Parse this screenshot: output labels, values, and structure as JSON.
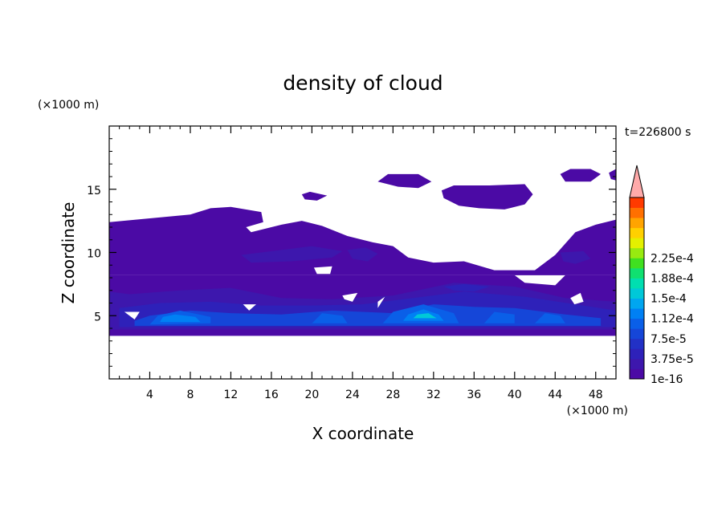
{
  "chart_data": {
    "type": "heatmap",
    "title": "density of cloud",
    "time_label": "t=226800 s",
    "xlabel": "X coordinate",
    "ylabel": "Z coordinate",
    "x_unit": "(×1000 m)",
    "y_unit": "(×1000 m)",
    "xlim": [
      0,
      50
    ],
    "ylim": [
      0,
      20
    ],
    "x_ticks": [
      "4",
      "8",
      "12",
      "16",
      "20",
      "24",
      "28",
      "32",
      "36",
      "40",
      "44",
      "48"
    ],
    "x_tick_values": [
      4,
      8,
      12,
      16,
      20,
      24,
      28,
      32,
      36,
      40,
      44,
      48
    ],
    "y_ticks": [
      "5",
      "10",
      "15"
    ],
    "y_tick_values": [
      5,
      10,
      15
    ],
    "colorbar": {
      "labels": [
        "1e-16",
        "3.75e-5",
        "7.5e-5",
        "1.12e-4",
        "1.5e-4",
        "1.88e-4",
        "2.25e-4"
      ],
      "label_values": [
        1e-16,
        3.75e-05,
        7.5e-05,
        0.000112,
        0.00015,
        0.000188,
        0.000225
      ],
      "levels": 18,
      "colors": [
        "#4b0aa5",
        "#3d17ad",
        "#2e21b9",
        "#2231c6",
        "#1546d8",
        "#0a5fe8",
        "#0080f4",
        "#00a6f0",
        "#00c8d8",
        "#00deb0",
        "#10e070",
        "#40e020",
        "#98ea10",
        "#e4f000",
        "#ffd000",
        "#ffa400",
        "#ff7000",
        "#ff3a00"
      ],
      "over_color": "#ffaaaa",
      "extend": "max"
    },
    "cloud_regions": [
      {
        "level": 0,
        "poly": [
          [
            0,
            3.4
          ],
          [
            50,
            3.4
          ],
          [
            50,
            8.2
          ],
          [
            45,
            8.2
          ],
          [
            44,
            7.4
          ],
          [
            41,
            7.6
          ],
          [
            40,
            8.2
          ],
          [
            0,
            8.2
          ]
        ]
      },
      {
        "level": 0,
        "poly": [
          [
            0,
            12.4
          ],
          [
            8,
            13
          ],
          [
            10,
            13.5
          ],
          [
            12,
            13.6
          ],
          [
            15,
            13.2
          ],
          [
            15.2,
            12.4
          ],
          [
            13.5,
            12
          ],
          [
            14,
            11.6
          ],
          [
            17,
            12.2
          ],
          [
            19,
            12.5
          ],
          [
            21,
            12.1
          ],
          [
            23.5,
            11.3
          ],
          [
            26,
            10.8
          ],
          [
            28,
            10.5
          ],
          [
            29.5,
            9.6
          ],
          [
            32,
            9.2
          ],
          [
            35,
            9.3
          ],
          [
            38,
            8.6
          ],
          [
            42,
            8.6
          ],
          [
            44,
            9.8
          ],
          [
            46,
            11.6
          ],
          [
            48,
            12.2
          ],
          [
            50,
            12.6
          ],
          [
            50,
            8.2
          ],
          [
            0,
            8.2
          ]
        ]
      },
      {
        "level": 0,
        "poly": [
          [
            26.5,
            15.6
          ],
          [
            27.5,
            16.2
          ],
          [
            30.5,
            16.2
          ],
          [
            31.8,
            15.6
          ],
          [
            30.5,
            15.1
          ],
          [
            28.5,
            15.2
          ]
        ]
      },
      {
        "level": 0,
        "poly": [
          [
            32.8,
            14.9
          ],
          [
            34,
            15.3
          ],
          [
            37.5,
            15.3
          ],
          [
            41,
            15.4
          ],
          [
            41.8,
            14.6
          ],
          [
            41,
            13.8
          ],
          [
            39,
            13.4
          ],
          [
            36.5,
            13.5
          ],
          [
            34.5,
            13.7
          ],
          [
            33,
            14.3
          ]
        ]
      },
      {
        "level": 0,
        "poly": [
          [
            44.5,
            16.2
          ],
          [
            45.5,
            16.6
          ],
          [
            47.5,
            16.6
          ],
          [
            48.5,
            16.2
          ],
          [
            47.5,
            15.6
          ],
          [
            45,
            15.6
          ]
        ]
      },
      {
        "level": 0,
        "poly": [
          [
            49.3,
            16.3
          ],
          [
            50,
            16.6
          ],
          [
            50,
            15.7
          ],
          [
            49.5,
            15.8
          ]
        ]
      },
      {
        "level": 0,
        "poly": [
          [
            19,
            14.6
          ],
          [
            19.8,
            14.8
          ],
          [
            21.5,
            14.5
          ],
          [
            20.5,
            14.1
          ],
          [
            19.3,
            14.2
          ]
        ]
      },
      {
        "level": 1,
        "poly": [
          [
            0,
            3.9
          ],
          [
            50,
            3.9
          ],
          [
            50,
            6.1
          ],
          [
            45,
            6.4
          ],
          [
            40,
            7.3
          ],
          [
            34,
            7.6
          ],
          [
            28,
            6.6
          ],
          [
            22,
            6.3
          ],
          [
            17,
            6.4
          ],
          [
            12,
            7.2
          ],
          [
            7,
            7
          ],
          [
            2,
            6.7
          ],
          [
            0,
            6.9
          ]
        ]
      },
      {
        "level": 1,
        "poly": [
          [
            13,
            9.8
          ],
          [
            17,
            10.2
          ],
          [
            20,
            10.5
          ],
          [
            23,
            10.1
          ],
          [
            22,
            9.6
          ],
          [
            18,
            9.3
          ],
          [
            14,
            9.2
          ]
        ]
      },
      {
        "level": 1,
        "poly": [
          [
            23.5,
            10.2
          ],
          [
            25.3,
            10.4
          ],
          [
            26.5,
            9.9
          ],
          [
            25.5,
            9.3
          ],
          [
            24,
            9.5
          ]
        ]
      },
      {
        "level": 1,
        "poly": [
          [
            44.5,
            10
          ],
          [
            46.8,
            10.1
          ],
          [
            47.5,
            9.5
          ],
          [
            46,
            9.1
          ],
          [
            44.8,
            9.3
          ]
        ]
      },
      {
        "level": 2,
        "poly": [
          [
            1,
            4.1
          ],
          [
            50,
            4.1
          ],
          [
            50,
            5.4
          ],
          [
            46,
            5.9
          ],
          [
            41,
            6.5
          ],
          [
            35,
            6.9
          ],
          [
            30,
            6.4
          ],
          [
            25,
            5.9
          ],
          [
            20,
            5.8
          ],
          [
            15,
            5.8
          ],
          [
            10,
            6.1
          ],
          [
            5,
            6
          ],
          [
            1,
            5.6
          ]
        ]
      },
      {
        "level": 2,
        "poly": [
          [
            33,
            7.3
          ],
          [
            35,
            7.5
          ],
          [
            37.5,
            7.3
          ],
          [
            36,
            6.9
          ],
          [
            34,
            7
          ]
        ]
      },
      {
        "level": 4,
        "poly": [
          [
            2.5,
            4.2
          ],
          [
            48.5,
            4.2
          ],
          [
            48.5,
            4.8
          ],
          [
            45,
            5.1
          ],
          [
            40,
            5.6
          ],
          [
            36,
            5.7
          ],
          [
            32,
            5.9
          ],
          [
            28,
            5.2
          ],
          [
            22,
            5.4
          ],
          [
            17,
            5.1
          ],
          [
            12,
            5.2
          ],
          [
            8,
            5.4
          ],
          [
            4,
            5
          ],
          [
            2.5,
            4.6
          ]
        ]
      },
      {
        "level": 5,
        "poly": [
          [
            4,
            4.3
          ],
          [
            10,
            4.4
          ],
          [
            10,
            4.9
          ],
          [
            7,
            5.4
          ],
          [
            4.8,
            5
          ]
        ]
      },
      {
        "level": 5,
        "poly": [
          [
            27,
            4.4
          ],
          [
            34.5,
            4.4
          ],
          [
            34,
            5.2
          ],
          [
            31,
            5.9
          ],
          [
            28,
            5.3
          ]
        ]
      },
      {
        "level": 5,
        "poly": [
          [
            37,
            4.4
          ],
          [
            40,
            4.4
          ],
          [
            40,
            5.1
          ],
          [
            38,
            5.3
          ]
        ]
      },
      {
        "level": 5,
        "poly": [
          [
            42,
            4.4
          ],
          [
            45,
            4.4
          ],
          [
            44.5,
            5
          ],
          [
            43,
            5.2
          ]
        ]
      },
      {
        "level": 5,
        "poly": [
          [
            20,
            4.4
          ],
          [
            23.5,
            4.4
          ],
          [
            23,
            5
          ],
          [
            21,
            5.2
          ]
        ]
      },
      {
        "level": 6,
        "poly": [
          [
            5,
            4.5
          ],
          [
            9,
            4.5
          ],
          [
            8.5,
            4.9
          ],
          [
            6.5,
            5.1
          ],
          [
            5.3,
            4.9
          ]
        ]
      },
      {
        "level": 6,
        "poly": [
          [
            29,
            4.6
          ],
          [
            33,
            4.6
          ],
          [
            32.5,
            5.1
          ],
          [
            31,
            5.5
          ],
          [
            29.5,
            5.1
          ]
        ]
      },
      {
        "level": 8,
        "poly": [
          [
            30,
            4.8
          ],
          [
            32.3,
            4.8
          ],
          [
            31.5,
            5.2
          ],
          [
            30.4,
            5.1
          ]
        ]
      }
    ],
    "clear_regions": [
      {
        "poly": [
          [
            0.6,
            16.2
          ],
          [
            0,
            16.2
          ],
          [
            0,
            16.6
          ],
          [
            0.6,
            16.5
          ]
        ]
      },
      {
        "poly": [
          [
            2.5,
            4.7
          ],
          [
            3,
            5.3
          ],
          [
            1.5,
            5.3
          ]
        ]
      },
      {
        "poly": [
          [
            13.8,
            5.4
          ],
          [
            14.5,
            5.9
          ],
          [
            13.2,
            5.9
          ]
        ]
      },
      {
        "poly": [
          [
            20.2,
            8.8
          ],
          [
            22,
            8.9
          ],
          [
            21.8,
            8.3
          ],
          [
            20.5,
            8.3
          ]
        ]
      },
      {
        "poly": [
          [
            23,
            6.6
          ],
          [
            24.5,
            6.8
          ],
          [
            24,
            6.1
          ],
          [
            23.2,
            6.3
          ]
        ]
      },
      {
        "poly": [
          [
            26.5,
            6.1
          ],
          [
            27.2,
            6.5
          ],
          [
            26.5,
            5.6
          ]
        ]
      },
      {
        "poly": [
          [
            37.5,
            12.3
          ],
          [
            39.5,
            12.5
          ],
          [
            40.5,
            12.1
          ],
          [
            39,
            11.8
          ]
        ]
      },
      {
        "poly": [
          [
            41,
            10.9
          ],
          [
            43.2,
            11
          ],
          [
            42.5,
            10.6
          ],
          [
            41.3,
            10.6
          ]
        ]
      },
      {
        "poly": [
          [
            45.5,
            6.4
          ],
          [
            46.5,
            6.8
          ],
          [
            46.8,
            6.1
          ],
          [
            45.9,
            5.9
          ]
        ]
      },
      {
        "poly": [
          [
            36.5,
            11.3
          ],
          [
            37.5,
            11.5
          ],
          [
            37.2,
            11.1
          ]
        ]
      }
    ]
  }
}
